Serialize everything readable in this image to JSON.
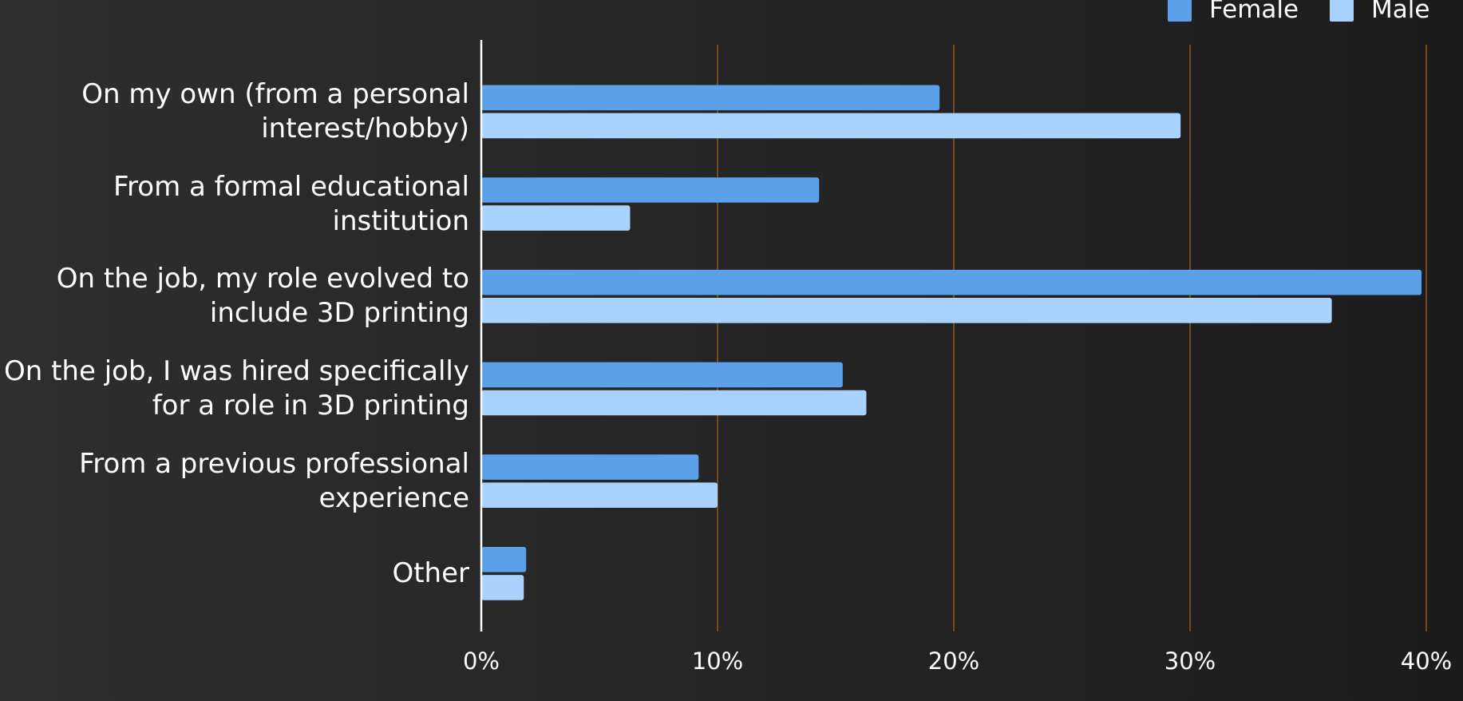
{
  "chart_data": {
    "type": "barh",
    "categories": [
      "On my own (from a personal interest/hobby)",
      "From a formal educational institution",
      "On the job, my role evolved to include 3D printing",
      "On the job, I was hired specifically for a role in 3D printing",
      "From a previous professional experience",
      "Other"
    ],
    "series": [
      {
        "name": "Female",
        "color": "#5ba0e8",
        "values": [
          19.4,
          14.3,
          39.8,
          15.3,
          9.2,
          1.9
        ]
      },
      {
        "name": "Male",
        "color": "#aad2ff",
        "values": [
          29.6,
          6.3,
          36.0,
          16.3,
          10.0,
          1.8
        ]
      }
    ],
    "xlim": [
      0,
      40
    ],
    "xticks": [
      {
        "value": 0,
        "label": "0%"
      },
      {
        "value": 10,
        "label": "10%"
      },
      {
        "value": 20,
        "label": "20%"
      },
      {
        "value": 30,
        "label": "30%"
      },
      {
        "value": 40,
        "label": "40%"
      }
    ],
    "grid": true,
    "legend": "top-right"
  }
}
